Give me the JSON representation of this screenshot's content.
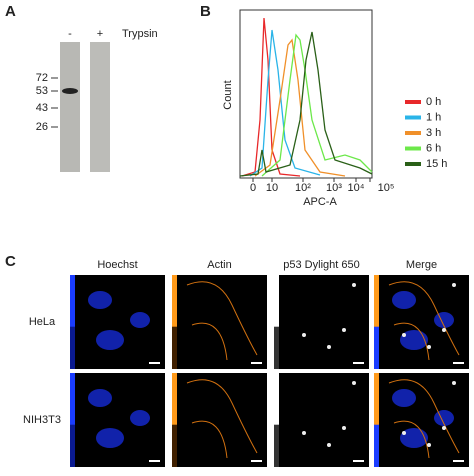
{
  "panel_a": {
    "label": "A",
    "lanes": [
      "-",
      "+"
    ],
    "treatment": "Trypsin",
    "markers": [
      "72",
      "53",
      "43",
      "26"
    ]
  },
  "panel_b": {
    "label": "B",
    "y_label": "Count",
    "x_label": "APC-A",
    "x_ticks": [
      "0",
      "10",
      "10²",
      "10³",
      "10⁴",
      "10⁵"
    ],
    "legend": [
      {
        "name": "0 h",
        "color": "#e8282a"
      },
      {
        "name": "1 h",
        "color": "#2ab4e8"
      },
      {
        "name": "3 h",
        "color": "#f0902a"
      },
      {
        "name": "6 h",
        "color": "#6ce84a"
      },
      {
        "name": "15 h",
        "color": "#2a6018"
      }
    ]
  },
  "panel_c": {
    "label": "C",
    "columns": [
      "Hoechst",
      "Actin",
      "p53 Dylight 650",
      "Merge"
    ],
    "rows": [
      "HeLa",
      "NIH3T3"
    ]
  }
}
